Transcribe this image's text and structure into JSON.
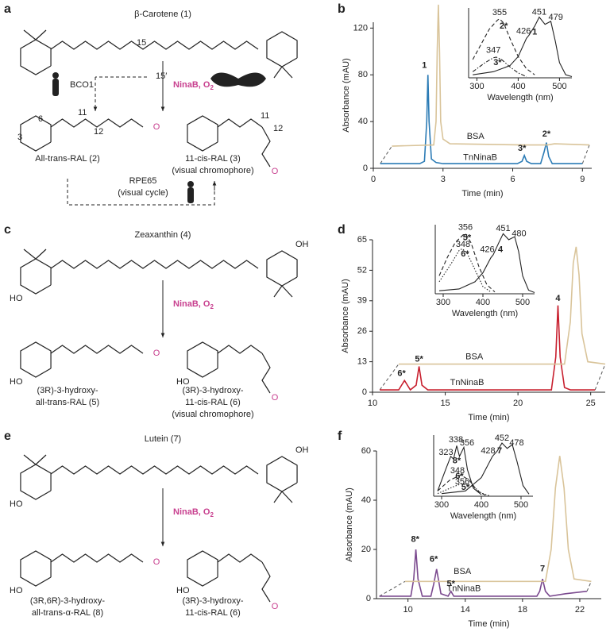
{
  "panel_letters": [
    "a",
    "b",
    "c",
    "d",
    "e",
    "f"
  ],
  "schemes": [
    {
      "compound": "β-Carotene (1)",
      "enzyme": "NinaB, O",
      "enzyme_sub": "2",
      "oxygen": "O",
      "other_enzyme": "BCO1",
      "bond_labels": [
        "15",
        "15′"
      ],
      "atom_numbers": [
        "6",
        "11",
        "12",
        "3",
        "11",
        "12"
      ],
      "product_left": [
        "All-trans-RAL (2)"
      ],
      "product_right": [
        "11-cis-RAL (3)",
        "(visual chromophore)"
      ],
      "cycle": [
        "RPE65",
        "(visual cycle)"
      ]
    },
    {
      "compound": "Zeaxanthin (4)",
      "enzyme": "NinaB, O",
      "enzyme_sub": "2",
      "oxygen": "O",
      "hydroxyl": [
        "HO",
        "OH"
      ],
      "product_left": [
        "(3R)-3-hydroxy-",
        "all-trans-RAL (5)"
      ],
      "product_right": [
        "(3R)-3-hydroxy-",
        "11-cis-RAL (6)",
        "(visual chromophore)"
      ]
    },
    {
      "compound": "Lutein (7)",
      "enzyme": "NinaB, O",
      "enzyme_sub": "2",
      "oxygen": "O",
      "hydroxyl": [
        "HO",
        "OH"
      ],
      "product_left": [
        "(3R,6R)-3-hydroxy-",
        "all-trans-α-RAL (8)"
      ],
      "product_right": [
        "(3R)-3-hydroxy-",
        "11-cis-RAL (6)"
      ]
    }
  ],
  "chart_data": [
    {
      "type": "line",
      "xlabel": "Time (min)",
      "ylabel": "Absorbance (mAU)",
      "xlim": [
        0,
        9.4
      ],
      "ylim": [
        0,
        125
      ],
      "xticks": [
        0,
        3,
        6,
        9
      ],
      "yticks": [
        0,
        40,
        80,
        120
      ],
      "series": [
        {
          "name": "TnNinaB",
          "color": "#2b7bb5",
          "dash": "solid",
          "label_x": 4.6,
          "label_y": 9,
          "x": [
            0.3,
            2.0,
            2.2,
            2.3,
            2.35,
            2.4,
            2.5,
            2.7,
            3,
            6.2,
            6.4,
            6.5,
            6.6,
            6.8,
            7.2,
            7.35,
            7.45,
            7.55,
            7.7,
            9
          ],
          "values": [
            4,
            4,
            6,
            40,
            80,
            40,
            8,
            5,
            4,
            4,
            6,
            11,
            6,
            4,
            4,
            14,
            22,
            10,
            4,
            4
          ]
        },
        {
          "name": "BSA",
          "color": "#d9c49a",
          "dash": "solid",
          "label_x": 4.4,
          "label_y": 27,
          "x": [
            0.8,
            2.6,
            2.7,
            2.75,
            2.8,
            2.85,
            2.9,
            3.0,
            3.3,
            6.5,
            7.5,
            7.8,
            9.3
          ],
          "values": [
            19,
            20,
            40,
            100,
            140,
            100,
            40,
            25,
            21,
            20,
            20,
            21,
            20
          ]
        }
      ],
      "annotations": [
        {
          "text": "1",
          "x": 2.2,
          "y": 88
        },
        {
          "text": "3*",
          "x": 6.4,
          "y": 17
        },
        {
          "text": "2*",
          "x": 7.45,
          "y": 29
        }
      ]
    },
    {
      "type": "line",
      "xlabel": "Wavelength (nm)",
      "xlim": [
        280,
        530
      ],
      "ylim": [
        0,
        1.15
      ],
      "xticks": [
        300,
        400,
        500
      ],
      "series": [
        {
          "color": "#222",
          "dash": "dashed",
          "x": [
            290,
            310,
            330,
            350,
            355,
            365,
            380,
            400,
            420,
            440
          ],
          "values": [
            0.3,
            0.55,
            0.8,
            0.95,
            0.97,
            0.9,
            0.65,
            0.35,
            0.15,
            0.05
          ]
        },
        {
          "color": "#222",
          "dash": "dashdot",
          "x": [
            290,
            320,
            340,
            347,
            360,
            380,
            400,
            420
          ],
          "values": [
            0.1,
            0.25,
            0.33,
            0.34,
            0.3,
            0.18,
            0.08,
            0.02
          ]
        },
        {
          "color": "#222",
          "dash": "solid",
          "x": [
            290,
            340,
            380,
            400,
            420,
            426,
            440,
            451,
            465,
            479,
            490,
            500,
            515,
            530
          ],
          "values": [
            0.05,
            0.1,
            0.2,
            0.35,
            0.65,
            0.7,
            0.85,
            1.0,
            0.88,
            0.93,
            0.6,
            0.25,
            0.05,
            0.02
          ]
        }
      ],
      "annotations": [
        {
          "text": "355",
          "x": 355,
          "y": 1.07
        },
        {
          "text": "2*",
          "x": 365,
          "y": 0.85
        },
        {
          "text": "347",
          "x": 340,
          "y": 0.45
        },
        {
          "text": "3*",
          "x": 350,
          "y": 0.25
        },
        {
          "text": "426",
          "x": 413,
          "y": 0.76
        },
        {
          "text": "1",
          "x": 440,
          "y": 0.75
        },
        {
          "text": "451",
          "x": 451,
          "y": 1.08
        },
        {
          "text": "479",
          "x": 491,
          "y": 0.99
        }
      ]
    },
    {
      "type": "line",
      "xlabel": "Time (min)",
      "ylabel": "Absorbance (mAU)",
      "xlim": [
        10,
        26
      ],
      "ylim": [
        0,
        65
      ],
      "xticks": [
        10,
        15,
        20,
        25
      ],
      "yticks": [
        0,
        13,
        26,
        39,
        52,
        65
      ],
      "series": [
        {
          "name": "TnNinaB",
          "color": "#c8202f",
          "dash": "solid",
          "label_x": 16.5,
          "label_y": 4,
          "x": [
            10.5,
            11.8,
            12.0,
            12.2,
            12.6,
            13.0,
            13.2,
            13.4,
            13.8,
            22.3,
            22.6,
            22.75,
            22.9,
            23.2,
            23.6,
            25.3
          ],
          "values": [
            1,
            1,
            3,
            5,
            1,
            3,
            11,
            3,
            1,
            1,
            15,
            37,
            15,
            2,
            1,
            1
          ]
        },
        {
          "name": "BSA",
          "color": "#d9c49a",
          "dash": "solid",
          "label_x": 17,
          "label_y": 15,
          "x": [
            11.8,
            23.2,
            23.6,
            23.8,
            24.0,
            24.2,
            24.4,
            24.8,
            26
          ],
          "values": [
            12,
            12,
            30,
            55,
            62,
            50,
            25,
            13,
            12
          ]
        }
      ],
      "annotations": [
        {
          "text": "6*",
          "x": 12.0,
          "y": 8
        },
        {
          "text": "5*",
          "x": 13.2,
          "y": 14
        },
        {
          "text": "4",
          "x": 22.75,
          "y": 40
        }
      ]
    },
    {
      "type": "line",
      "xlabel": "Wavelength (nm)",
      "xlim": [
        280,
        530
      ],
      "ylim": [
        0,
        1.15
      ],
      "xticks": [
        300,
        400,
        500
      ],
      "series": [
        {
          "color": "#222",
          "dash": "dashed",
          "x": [
            290,
            310,
            330,
            350,
            356,
            370,
            390,
            410,
            430
          ],
          "values": [
            0.3,
            0.6,
            0.85,
            0.98,
            1.0,
            0.85,
            0.45,
            0.15,
            0.03
          ]
        },
        {
          "color": "#222",
          "dash": "dotted",
          "x": [
            290,
            320,
            340,
            348,
            360,
            380,
            400,
            420
          ],
          "values": [
            0.2,
            0.5,
            0.72,
            0.75,
            0.68,
            0.4,
            0.12,
            0.03
          ]
        },
        {
          "color": "#222",
          "dash": "solid",
          "x": [
            290,
            340,
            380,
            400,
            420,
            426,
            440,
            451,
            465,
            480,
            490,
            500,
            515,
            530
          ],
          "values": [
            0.05,
            0.08,
            0.2,
            0.35,
            0.6,
            0.65,
            0.85,
            1.0,
            0.9,
            0.95,
            0.7,
            0.3,
            0.06,
            0.02
          ]
        }
      ],
      "annotations": [
        {
          "text": "356",
          "x": 356,
          "y": 1.1
        },
        {
          "text": "5*",
          "x": 360,
          "y": 0.93
        },
        {
          "text": "348",
          "x": 350,
          "y": 0.82
        },
        {
          "text": "6*",
          "x": 355,
          "y": 0.66
        },
        {
          "text": "426",
          "x": 411,
          "y": 0.73
        },
        {
          "text": "4",
          "x": 444,
          "y": 0.73
        },
        {
          "text": "451",
          "x": 451,
          "y": 1.08
        },
        {
          "text": "480",
          "x": 491,
          "y": 1.0
        }
      ]
    },
    {
      "type": "line",
      "xlabel": "Time (min)",
      "ylabel": "Absorbance (mAU)",
      "xlim": [
        7.8,
        23.5
      ],
      "ylim": [
        0,
        60
      ],
      "xticks": [
        10,
        14,
        18,
        22
      ],
      "yticks": [
        0,
        20,
        40,
        60
      ],
      "series": [
        {
          "name": "TnNinaB",
          "color": "#7b4a8f",
          "dash": "solid",
          "label_x": 13.9,
          "label_y": 4,
          "x": [
            8,
            10.2,
            10.4,
            10.55,
            10.7,
            11,
            11.6,
            11.8,
            12.0,
            12.3,
            12.8,
            13.0,
            13.2,
            13.5,
            14,
            19,
            19.2,
            19.4,
            19.6,
            19.9,
            21,
            22.5
          ],
          "values": [
            1,
            1,
            8,
            20,
            8,
            1,
            1,
            6,
            12,
            2,
            1,
            3,
            1,
            1,
            1,
            1,
            3,
            8,
            3,
            1,
            2,
            3
          ]
        },
        {
          "name": "BSA",
          "color": "#d9c49a",
          "dash": "solid",
          "label_x": 13.8,
          "label_y": 11,
          "x": [
            9.8,
            19.6,
            20,
            20.3,
            20.6,
            20.9,
            21.2,
            21.6,
            22.8
          ],
          "values": [
            7,
            7,
            20,
            45,
            58,
            45,
            20,
            8,
            7
          ]
        }
      ],
      "annotations": [
        {
          "text": "8*",
          "x": 10.5,
          "y": 24
        },
        {
          "text": "6*",
          "x": 11.8,
          "y": 16
        },
        {
          "text": "5*",
          "x": 13,
          "y": 6
        },
        {
          "text": "7",
          "x": 19.4,
          "y": 12
        }
      ]
    },
    {
      "type": "line",
      "xlabel": "Wavelength (nm)",
      "xlim": [
        280,
        530
      ],
      "ylim": [
        0,
        1.15
      ],
      "xticks": [
        300,
        400,
        500
      ],
      "series": [
        {
          "color": "#222",
          "dash": "solid",
          "x": [
            290,
            310,
            323,
            330,
            338,
            345,
            356,
            365,
            380,
            400
          ],
          "values": [
            0.1,
            0.5,
            0.75,
            0.7,
            0.95,
            0.75,
            0.92,
            0.5,
            0.15,
            0.03
          ]
        },
        {
          "color": "#222",
          "dash": "dashed",
          "x": [
            290,
            320,
            348,
            370,
            390,
            410
          ],
          "values": [
            0.1,
            0.3,
            0.4,
            0.3,
            0.1,
            0.02
          ]
        },
        {
          "color": "#222",
          "dash": "dotted",
          "x": [
            290,
            330,
            356,
            380,
            400,
            420
          ],
          "values": [
            0.05,
            0.18,
            0.25,
            0.18,
            0.06,
            0.01
          ]
        },
        {
          "color": "#222",
          "dash": "solid",
          "x": [
            300,
            360,
            400,
            428,
            440,
            452,
            465,
            478,
            490,
            505,
            520
          ],
          "values": [
            0.05,
            0.1,
            0.35,
            0.75,
            0.85,
            1.0,
            0.9,
            0.97,
            0.65,
            0.2,
            0.04
          ]
        }
      ],
      "annotations": [
        {
          "text": "338",
          "x": 336,
          "y": 1.06
        },
        {
          "text": "356",
          "x": 364,
          "y": 1.0
        },
        {
          "text": "323",
          "x": 311,
          "y": 0.82
        },
        {
          "text": "8*",
          "x": 338,
          "y": 0.66
        },
        {
          "text": "348",
          "x": 340,
          "y": 0.48
        },
        {
          "text": "6*",
          "x": 345,
          "y": 0.37
        },
        {
          "text": "356",
          "x": 352,
          "y": 0.27
        },
        {
          "text": "5*",
          "x": 360,
          "y": 0.16
        },
        {
          "text": "428",
          "x": 417,
          "y": 0.85
        },
        {
          "text": "7",
          "x": 446,
          "y": 0.85
        },
        {
          "text": "452",
          "x": 452,
          "y": 1.09
        },
        {
          "text": "478",
          "x": 489,
          "y": 1.0
        }
      ]
    }
  ]
}
